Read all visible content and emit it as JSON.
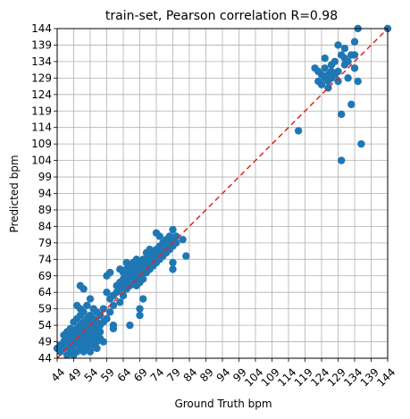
{
  "chart_data": {
    "type": "scatter",
    "title": "train-set, Pearson correlation R=0.98",
    "xlabel": "Ground Truth bpm",
    "ylabel": "Predicted bpm",
    "xlim": [
      44,
      144
    ],
    "ylim": [
      44,
      144
    ],
    "xticks": [
      44,
      49,
      54,
      59,
      64,
      69,
      74,
      79,
      84,
      89,
      94,
      99,
      104,
      109,
      114,
      119,
      124,
      129,
      134,
      139,
      144
    ],
    "yticks": [
      44,
      49,
      54,
      59,
      64,
      69,
      74,
      79,
      84,
      89,
      94,
      99,
      104,
      109,
      114,
      119,
      124,
      129,
      134,
      139,
      144
    ],
    "xtick_rotation": 45,
    "grid": true,
    "reference_line": {
      "style": "dashed",
      "color": "#e8221c",
      "from": [
        44,
        44
      ],
      "to": [
        144,
        144
      ]
    },
    "point_color": "#1f77b4",
    "points": [
      [
        44,
        47
      ],
      [
        45,
        46
      ],
      [
        45,
        48
      ],
      [
        46,
        47
      ],
      [
        46,
        49
      ],
      [
        46,
        51
      ],
      [
        47,
        45
      ],
      [
        47,
        48
      ],
      [
        47,
        50
      ],
      [
        47,
        52
      ],
      [
        48,
        46
      ],
      [
        48,
        47
      ],
      [
        48,
        49
      ],
      [
        48,
        51
      ],
      [
        48,
        53
      ],
      [
        49,
        45
      ],
      [
        49,
        48
      ],
      [
        49,
        50
      ],
      [
        49,
        52
      ],
      [
        49,
        55
      ],
      [
        50,
        46
      ],
      [
        50,
        49
      ],
      [
        50,
        51
      ],
      [
        50,
        53
      ],
      [
        50,
        56
      ],
      [
        50,
        60
      ],
      [
        51,
        47
      ],
      [
        51,
        48
      ],
      [
        51,
        50
      ],
      [
        51,
        52
      ],
      [
        51,
        54
      ],
      [
        51,
        57
      ],
      [
        51,
        59
      ],
      [
        51,
        66
      ],
      [
        52,
        46
      ],
      [
        52,
        49
      ],
      [
        52,
        51
      ],
      [
        52,
        53
      ],
      [
        52,
        55
      ],
      [
        52,
        58
      ],
      [
        52,
        65
      ],
      [
        53,
        47
      ],
      [
        53,
        48
      ],
      [
        53,
        50
      ],
      [
        53,
        52
      ],
      [
        53,
        54
      ],
      [
        53,
        56
      ],
      [
        53,
        60
      ],
      [
        54,
        46
      ],
      [
        54,
        49
      ],
      [
        54,
        51
      ],
      [
        54,
        53
      ],
      [
        54,
        55
      ],
      [
        54,
        57
      ],
      [
        54,
        62
      ],
      [
        55,
        48
      ],
      [
        55,
        50
      ],
      [
        55,
        52
      ],
      [
        55,
        54
      ],
      [
        55,
        56
      ],
      [
        55,
        59
      ],
      [
        56,
        47
      ],
      [
        56,
        49
      ],
      [
        56,
        51
      ],
      [
        56,
        53
      ],
      [
        56,
        55
      ],
      [
        56,
        58
      ],
      [
        57,
        50
      ],
      [
        57,
        52
      ],
      [
        57,
        54
      ],
      [
        57,
        57
      ],
      [
        58,
        49
      ],
      [
        58,
        55
      ],
      [
        58,
        59
      ],
      [
        59,
        56
      ],
      [
        59,
        64
      ],
      [
        59,
        69
      ],
      [
        60,
        58
      ],
      [
        60,
        62
      ],
      [
        60,
        70
      ],
      [
        61,
        53
      ],
      [
        61,
        54
      ],
      [
        61,
        60
      ],
      [
        61,
        63
      ],
      [
        62,
        64
      ],
      [
        62,
        66
      ],
      [
        63,
        61
      ],
      [
        63,
        65
      ],
      [
        63,
        67
      ],
      [
        63,
        71
      ],
      [
        64,
        63
      ],
      [
        64,
        66
      ],
      [
        64,
        68
      ],
      [
        64,
        70
      ],
      [
        65,
        65
      ],
      [
        65,
        67
      ],
      [
        65,
        69
      ],
      [
        65,
        71
      ],
      [
        65,
        73
      ],
      [
        66,
        66
      ],
      [
        66,
        54
      ],
      [
        66,
        68
      ],
      [
        66,
        70
      ],
      [
        66,
        72
      ],
      [
        67,
        67
      ],
      [
        67,
        69
      ],
      [
        67,
        71
      ],
      [
        67,
        73
      ],
      [
        68,
        66
      ],
      [
        68,
        68
      ],
      [
        68,
        70
      ],
      [
        68,
        72
      ],
      [
        68,
        74
      ],
      [
        69,
        67
      ],
      [
        69,
        69
      ],
      [
        69,
        71
      ],
      [
        69,
        73
      ],
      [
        69,
        59
      ],
      [
        69,
        57
      ],
      [
        70,
        62
      ],
      [
        70,
        68
      ],
      [
        70,
        70
      ],
      [
        70,
        72
      ],
      [
        70,
        74
      ],
      [
        71,
        70
      ],
      [
        71,
        72
      ],
      [
        71,
        74
      ],
      [
        71,
        76
      ],
      [
        72,
        71
      ],
      [
        72,
        73
      ],
      [
        72,
        75
      ],
      [
        72,
        77
      ],
      [
        73,
        72
      ],
      [
        73,
        74
      ],
      [
        73,
        76
      ],
      [
        74,
        73
      ],
      [
        74,
        75
      ],
      [
        74,
        77
      ],
      [
        74,
        82
      ],
      [
        75,
        74
      ],
      [
        75,
        76
      ],
      [
        75,
        78
      ],
      [
        75,
        81
      ],
      [
        76,
        75
      ],
      [
        76,
        77
      ],
      [
        76,
        79
      ],
      [
        77,
        76
      ],
      [
        77,
        78
      ],
      [
        77,
        80
      ],
      [
        78,
        77
      ],
      [
        78,
        79
      ],
      [
        78,
        81
      ],
      [
        79,
        78
      ],
      [
        79,
        80
      ],
      [
        79,
        83
      ],
      [
        79,
        73
      ],
      [
        79,
        71
      ],
      [
        80,
        79
      ],
      [
        80,
        81
      ],
      [
        82,
        80
      ],
      [
        83,
        75
      ],
      [
        117,
        113
      ],
      [
        122,
        132
      ],
      [
        123,
        131
      ],
      [
        123,
        128
      ],
      [
        124,
        127
      ],
      [
        124,
        130
      ],
      [
        125,
        129
      ],
      [
        125,
        132
      ],
      [
        125,
        135
      ],
      [
        126,
        126
      ],
      [
        126,
        128
      ],
      [
        126,
        130
      ],
      [
        127,
        129
      ],
      [
        127,
        131
      ],
      [
        127,
        133
      ],
      [
        128,
        130
      ],
      [
        128,
        134
      ],
      [
        129,
        128
      ],
      [
        129,
        131
      ],
      [
        129,
        139
      ],
      [
        130,
        104
      ],
      [
        130,
        118
      ],
      [
        130,
        136
      ],
      [
        131,
        133
      ],
      [
        131,
        135
      ],
      [
        131,
        138
      ],
      [
        132,
        129
      ],
      [
        132,
        134
      ],
      [
        133,
        121
      ],
      [
        133,
        136
      ],
      [
        134,
        132
      ],
      [
        134,
        136
      ],
      [
        134,
        140
      ],
      [
        135,
        128
      ],
      [
        135,
        144
      ],
      [
        136,
        109
      ],
      [
        144,
        144
      ]
    ]
  }
}
